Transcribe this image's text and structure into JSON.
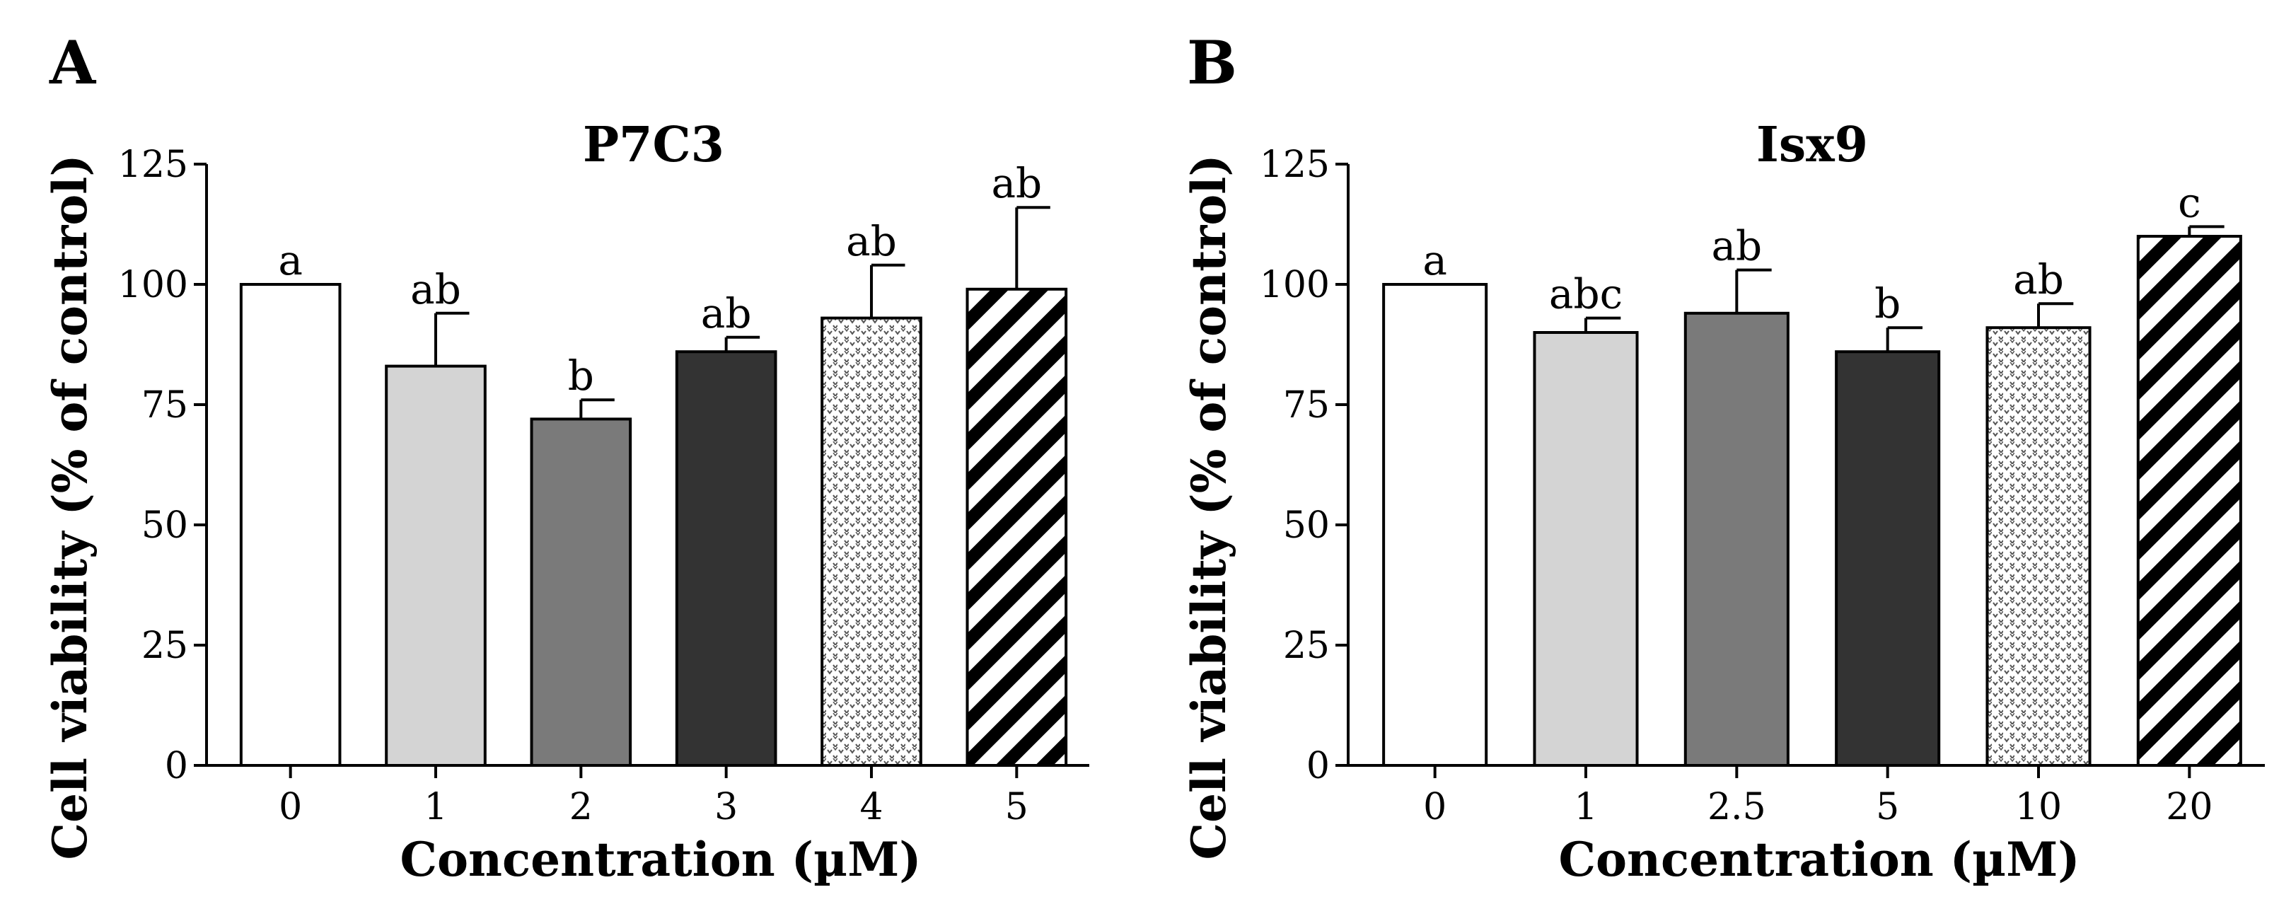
{
  "chart_data": [
    {
      "panel": "A",
      "type": "bar",
      "title": "P7C3",
      "xlabel": "Concentration (µM)",
      "ylabel": "Cell viability (% of control)",
      "ylim": [
        0,
        125
      ],
      "yticks": [
        0,
        25,
        50,
        75,
        100,
        125
      ],
      "categories": [
        "0",
        "1",
        "2",
        "3",
        "4",
        "5"
      ],
      "values": [
        100,
        83,
        72,
        86,
        93,
        99
      ],
      "errors": [
        0,
        11,
        4,
        3,
        11,
        17
      ],
      "significance": [
        "a",
        "ab",
        "b",
        "ab",
        "ab",
        "ab"
      ],
      "fills": [
        "white",
        "lightgray",
        "gray",
        "black",
        "dotted",
        "hatched"
      ]
    },
    {
      "panel": "B",
      "type": "bar",
      "title": "Isx9",
      "xlabel": "Concentration (µM)",
      "ylabel": "Cell viability (% of control)",
      "ylim": [
        0,
        125
      ],
      "yticks": [
        0,
        25,
        50,
        75,
        100,
        125
      ],
      "categories": [
        "0",
        "1",
        "2.5",
        "5",
        "10",
        "20"
      ],
      "values": [
        100,
        90,
        94,
        86,
        91,
        110
      ],
      "errors": [
        0,
        3,
        9,
        5,
        5,
        2
      ],
      "significance": [
        "a",
        "abc",
        "ab",
        "b",
        "ab",
        "c"
      ],
      "fills": [
        "white",
        "lightgray",
        "gray",
        "black",
        "dotted",
        "hatched"
      ]
    }
  ],
  "colors": {
    "white": "#ffffff",
    "lightgray": "#d4d4d4",
    "gray": "#7a7a7a",
    "black": "#333333",
    "axis": "#000000"
  }
}
